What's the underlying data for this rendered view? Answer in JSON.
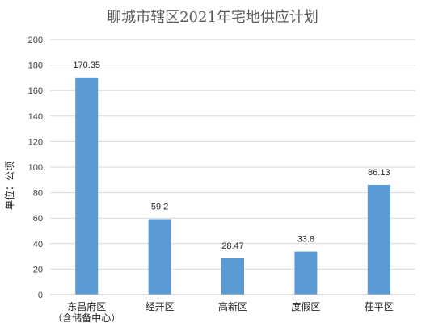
{
  "chart_data": {
    "type": "bar",
    "title": "聊城市辖区2021年宅地供应计划",
    "ylabel": "单位：公顷",
    "xlabel": "",
    "categories": [
      [
        "东昌府区",
        "（含储备中心）"
      ],
      [
        "经开区"
      ],
      [
        "高新区"
      ],
      [
        "度假区"
      ],
      [
        "茌平区"
      ]
    ],
    "values": [
      170.35,
      59.2,
      28.47,
      33.8,
      86.13
    ],
    "value_labels": [
      "170.35",
      "59.2",
      "28.47",
      "33.8",
      "86.13"
    ],
    "ylim": [
      0,
      200
    ],
    "yticks": [
      0,
      20,
      40,
      60,
      80,
      100,
      120,
      140,
      160,
      180,
      200
    ],
    "grid": true,
    "legend": "none",
    "bar_color": "#5B9BD5"
  }
}
